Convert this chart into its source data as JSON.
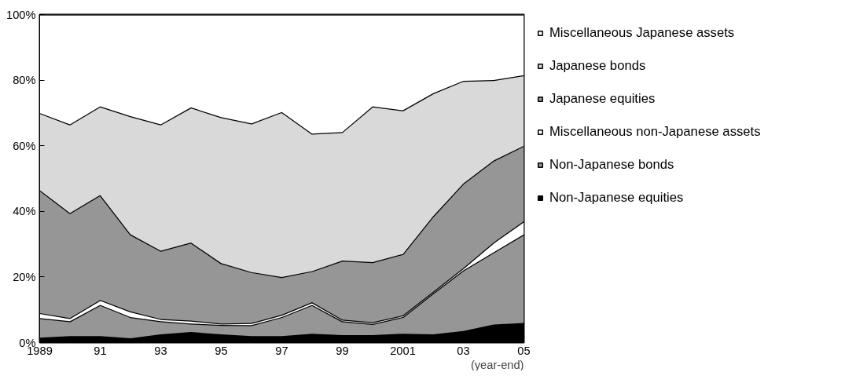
{
  "chart_data": {
    "type": "area",
    "stacked": true,
    "x": [
      1989,
      1990,
      1991,
      1992,
      1993,
      1994,
      1995,
      1996,
      1997,
      1998,
      1999,
      2000,
      2001,
      2002,
      2003,
      2004,
      2005
    ],
    "series": [
      {
        "name": "Non-Japanese equities",
        "color": "#000000",
        "values": [
          1.5,
          2,
          2,
          1.3,
          2.5,
          3.2,
          2.5,
          2,
          2,
          2.7,
          2.3,
          2.3,
          2.7,
          2.5,
          3.5,
          5.5,
          6
        ]
      },
      {
        "name": "Non-Japanese bonds",
        "color": "#969696",
        "values": [
          6,
          4.5,
          9.5,
          6.5,
          4,
          2.6,
          2.9,
          3.3,
          5.8,
          8.8,
          4.2,
          3.4,
          5.1,
          12.5,
          18.5,
          22,
          27
        ]
      },
      {
        "name": "Miscellaneous non-Japanese assets",
        "color": "#ffffff",
        "values": [
          1.5,
          1,
          1.5,
          1.7,
          0.7,
          0.9,
          0.4,
          0.7,
          0.7,
          0.8,
          0.5,
          0.5,
          0.5,
          0.5,
          0.7,
          3,
          4
        ]
      },
      {
        "name": "Japanese equities",
        "color": "#969696",
        "values": [
          37.5,
          32,
          32,
          23.5,
          20.8,
          23.8,
          18.4,
          15.5,
          11.5,
          9.5,
          18,
          18.3,
          18.7,
          23,
          25.8,
          25,
          23
        ]
      },
      {
        "name": "Japanese bonds",
        "color": "#d9d9d9",
        "values": [
          23.5,
          27,
          27,
          36,
          38.5,
          41.2,
          44.5,
          45.3,
          50.3,
          41.9,
          39.2,
          47.5,
          43.8,
          37.5,
          31.3,
          24.5,
          21.5
        ]
      },
      {
        "name": "Miscellaneous Japanese assets",
        "color": "#ffffff",
        "values": [
          30,
          33.5,
          28,
          31,
          33.5,
          28.3,
          31.3,
          33.2,
          29.7,
          36.3,
          35.8,
          28,
          29.2,
          24,
          20.2,
          20,
          18.5
        ]
      }
    ],
    "xlim": [
      1989,
      2005
    ],
    "xticks": [
      {
        "value": 1989,
        "label": "1989"
      },
      {
        "value": 1990,
        "label": null
      },
      {
        "value": 1991,
        "label": "91"
      },
      {
        "value": 1992,
        "label": null
      },
      {
        "value": 1993,
        "label": "93"
      },
      {
        "value": 1994,
        "label": null
      },
      {
        "value": 1995,
        "label": "95"
      },
      {
        "value": 1996,
        "label": null
      },
      {
        "value": 1997,
        "label": "97"
      },
      {
        "value": 1998,
        "label": null
      },
      {
        "value": 1999,
        "label": "99"
      },
      {
        "value": 2000,
        "label": null
      },
      {
        "value": 2001,
        "label": "2001"
      },
      {
        "value": 2002,
        "label": null
      },
      {
        "value": 2003,
        "label": "03"
      },
      {
        "value": 2004,
        "label": null
      },
      {
        "value": 2005,
        "label": "05"
      }
    ],
    "ylim": [
      0,
      100
    ],
    "yticks": [
      {
        "value": 0,
        "label": "0%"
      },
      {
        "value": 20,
        "label": "20%"
      },
      {
        "value": 40,
        "label": "40%"
      },
      {
        "value": 60,
        "label": "60%"
      },
      {
        "value": 80,
        "label": "80%"
      },
      {
        "value": 100,
        "label": "100%"
      }
    ],
    "annotations": [
      "(year-end)"
    ],
    "grid": false,
    "legend": "right"
  }
}
